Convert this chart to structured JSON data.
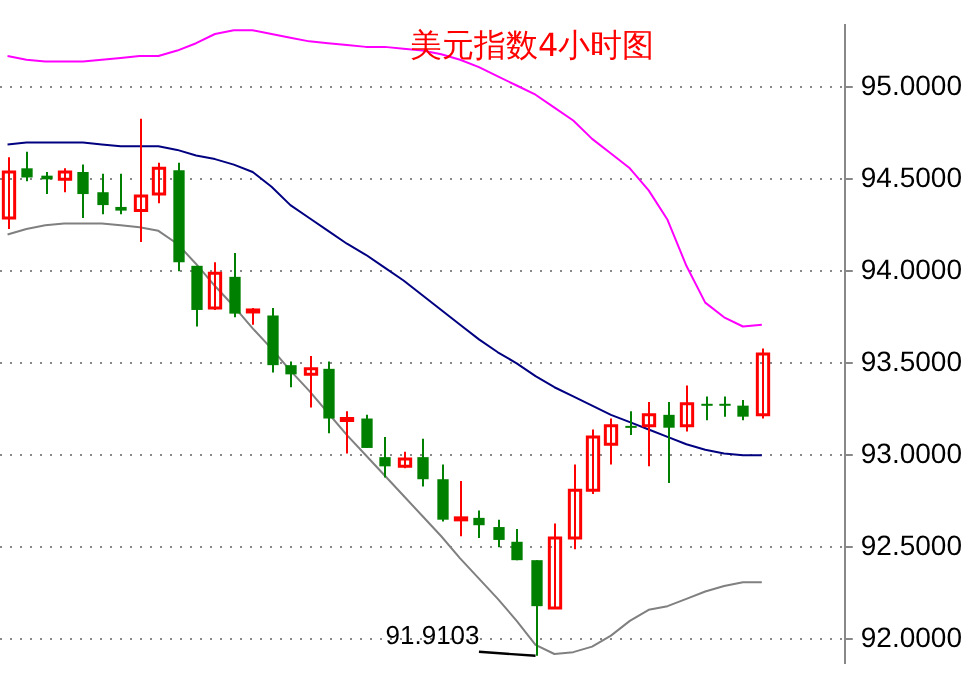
{
  "chart_data": {
    "type": "candlestick",
    "title": "美元指数4小时图",
    "categories": [
      null,
      null,
      null,
      null,
      null,
      null,
      null,
      null,
      null,
      null,
      null,
      null,
      null,
      null,
      null,
      null,
      null,
      null,
      null,
      null,
      null,
      null,
      null,
      null,
      null,
      null,
      null,
      null,
      null,
      null,
      null,
      null,
      null,
      null,
      null,
      null,
      null,
      null,
      null,
      null,
      null
    ],
    "series": [
      {
        "type": "candlestick",
        "ohlc": [
          [
            94.29,
            94.62,
            94.23,
            94.54
          ],
          [
            94.56,
            94.65,
            94.49,
            94.51
          ],
          [
            94.52,
            94.54,
            94.42,
            94.5
          ],
          [
            94.5,
            94.56,
            94.43,
            94.54
          ],
          [
            94.54,
            94.58,
            94.29,
            94.42
          ],
          [
            94.43,
            94.53,
            94.31,
            94.36
          ],
          [
            94.35,
            94.53,
            94.31,
            94.33
          ],
          [
            94.33,
            94.83,
            94.16,
            94.41
          ],
          [
            94.42,
            94.59,
            94.37,
            94.56
          ],
          [
            94.55,
            94.59,
            94.0,
            94.05
          ],
          [
            94.03,
            94.03,
            93.7,
            93.79
          ],
          [
            93.8,
            94.05,
            93.79,
            93.99
          ],
          [
            93.97,
            94.1,
            93.75,
            93.77
          ],
          [
            93.78,
            93.8,
            93.71,
            93.79
          ],
          [
            93.76,
            93.8,
            93.45,
            93.49
          ],
          [
            93.49,
            93.51,
            93.37,
            93.44
          ],
          [
            93.44,
            93.54,
            93.26,
            93.47
          ],
          [
            93.47,
            93.51,
            93.12,
            93.2
          ],
          [
            93.19,
            93.24,
            93.01,
            93.2
          ],
          [
            93.2,
            93.22,
            93.04,
            93.04
          ],
          [
            92.99,
            93.1,
            92.88,
            92.94
          ],
          [
            92.94,
            93.02,
            92.93,
            92.98
          ],
          [
            92.99,
            93.09,
            92.83,
            92.87
          ],
          [
            92.87,
            92.95,
            92.64,
            92.65
          ],
          [
            92.65,
            92.86,
            92.56,
            92.66
          ],
          [
            92.66,
            92.7,
            92.55,
            92.62
          ],
          [
            92.61,
            92.65,
            92.5,
            92.54
          ],
          [
            92.53,
            92.6,
            92.43,
            92.43
          ],
          [
            92.43,
            92.43,
            91.9103,
            92.18
          ],
          [
            92.17,
            92.63,
            92.17,
            92.55
          ],
          [
            92.55,
            92.95,
            92.49,
            92.81
          ],
          [
            92.81,
            93.14,
            92.79,
            93.1
          ],
          [
            93.06,
            93.2,
            92.95,
            93.16
          ],
          [
            93.16,
            93.24,
            93.11,
            93.15
          ],
          [
            93.16,
            93.29,
            92.94,
            93.22
          ],
          [
            93.22,
            93.29,
            92.85,
            93.15
          ],
          [
            93.16,
            93.38,
            93.13,
            93.28
          ],
          [
            93.28,
            93.32,
            93.19,
            93.27
          ],
          [
            93.28,
            93.32,
            93.21,
            93.27
          ],
          [
            93.27,
            93.3,
            93.19,
            93.21
          ],
          [
            93.22,
            93.58,
            93.2,
            93.55
          ]
        ],
        "colors": [
          "#ff0000",
          "#008000",
          "#008000",
          "#ff0000",
          "#008000",
          "#008000",
          "#008000",
          "#ff0000",
          "#ff0000",
          "#008000",
          "#008000",
          "#ff0000",
          "#008000",
          "#ff0000",
          "#008000",
          "#008000",
          "#ff0000",
          "#008000",
          "#ff0000",
          "#008000",
          "#008000",
          "#ff0000",
          "#008000",
          "#008000",
          "#ff0000",
          "#008000",
          "#008000",
          "#008000",
          "#008000",
          "#ff0000",
          "#ff0000",
          "#ff0000",
          "#ff0000",
          "#008000",
          "#ff0000",
          "#008000",
          "#ff0000",
          "#008000",
          "#008000",
          "#008000",
          "#ff0000"
        ]
      },
      {
        "type": "line",
        "color": "#ff00ff",
        "values": [
          95.17,
          95.15,
          95.14,
          95.14,
          95.14,
          95.15,
          95.16,
          95.17,
          95.17,
          95.2,
          95.24,
          95.29,
          95.31,
          95.31,
          95.29,
          95.27,
          95.25,
          95.24,
          95.23,
          95.22,
          95.22,
          95.21,
          95.2,
          95.18,
          95.15,
          95.11,
          95.06,
          95.01,
          94.96,
          94.89,
          94.82,
          94.72,
          94.64,
          94.56,
          94.44,
          94.28,
          94.03,
          93.83,
          93.75,
          93.7,
          93.71
        ]
      },
      {
        "type": "line",
        "color": "#000080",
        "values": [
          94.69,
          94.7,
          94.7,
          94.7,
          94.7,
          94.69,
          94.68,
          94.68,
          94.68,
          94.66,
          94.63,
          94.61,
          94.58,
          94.54,
          94.46,
          94.36,
          94.29,
          94.22,
          94.15,
          94.09,
          94.02,
          93.95,
          93.87,
          93.79,
          93.71,
          93.63,
          93.56,
          93.5,
          93.43,
          93.37,
          93.32,
          93.27,
          93.22,
          93.18,
          93.14,
          93.1,
          93.06,
          93.03,
          93.01,
          93.0,
          93.0
        ]
      },
      {
        "type": "line",
        "color": "#808080",
        "values": [
          94.2,
          94.23,
          94.25,
          94.26,
          94.26,
          94.26,
          94.25,
          94.24,
          94.22,
          94.15,
          94.04,
          93.92,
          93.81,
          93.69,
          93.58,
          93.46,
          93.35,
          93.23,
          93.11,
          93.0,
          92.89,
          92.78,
          92.67,
          92.56,
          92.44,
          92.33,
          92.22,
          92.1,
          91.97,
          91.92,
          91.93,
          91.96,
          92.02,
          92.1,
          92.16,
          92.18,
          92.22,
          92.26,
          92.29,
          92.31,
          92.31
        ]
      }
    ],
    "ylim": [
      91.87,
      95.34
    ],
    "yticks": [
      {
        "value": 92,
        "label": "92.0000"
      },
      {
        "value": 92.5,
        "label": "92.5000"
      },
      {
        "value": 93,
        "label": "93.0000"
      },
      {
        "value": 93.5,
        "label": "93.5000"
      },
      {
        "value": 94,
        "label": "94.0000"
      },
      {
        "value": 94.5,
        "label": "94.5000"
      },
      {
        "value": 95,
        "label": "95.0000"
      }
    ],
    "grid": "y",
    "line_style": "solid",
    "marker": "none",
    "tick_labels": "y",
    "annotations": [
      "91.9103"
    ]
  }
}
